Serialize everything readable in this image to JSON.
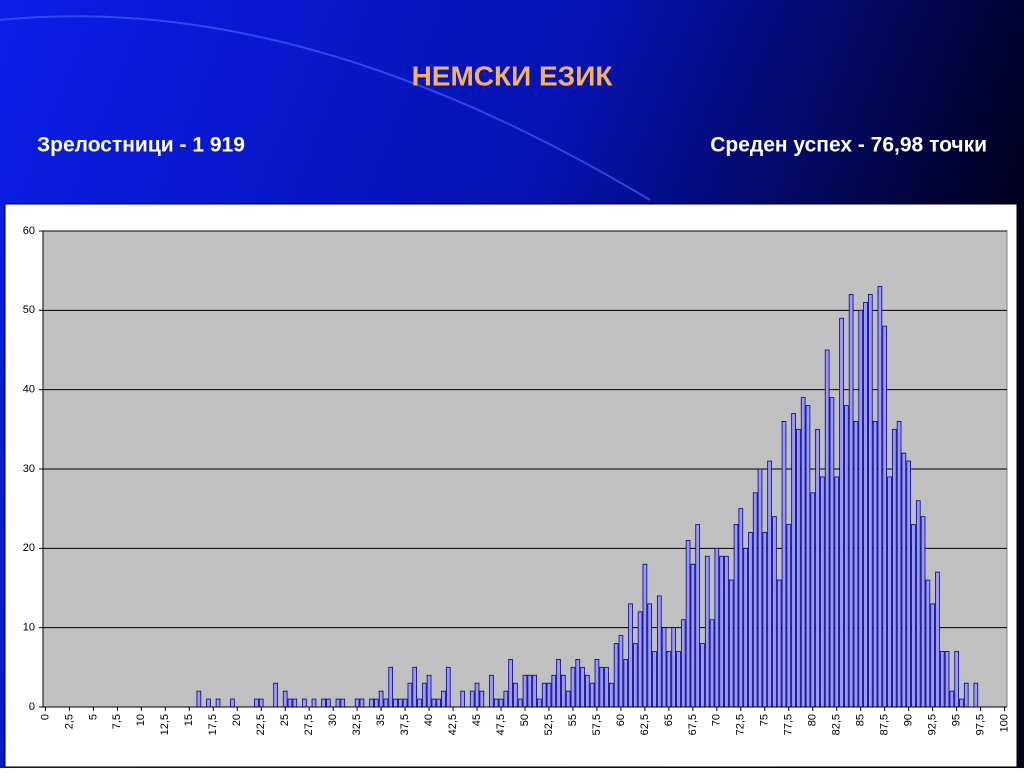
{
  "chart_data": {
    "type": "bar",
    "title": "НЕМСКИ ЕЗИК",
    "subtitles": [
      "Зрелостници - 1 919",
      "Среден успех - 76,98 точки"
    ],
    "categories": [
      "0",
      null,
      null,
      null,
      null,
      "2,5",
      null,
      null,
      null,
      null,
      "5",
      null,
      null,
      null,
      null,
      "7,5",
      null,
      null,
      null,
      null,
      "10",
      null,
      null,
      null,
      null,
      "12,5",
      null,
      null,
      null,
      null,
      "15",
      null,
      null,
      null,
      null,
      "17,5",
      null,
      null,
      null,
      null,
      "20",
      null,
      null,
      null,
      null,
      "22,5",
      null,
      null,
      null,
      null,
      "25",
      null,
      null,
      null,
      null,
      "27,5",
      null,
      null,
      null,
      null,
      "30",
      null,
      null,
      null,
      null,
      "32,5",
      null,
      null,
      null,
      null,
      "35",
      null,
      null,
      null,
      null,
      "37,5",
      null,
      null,
      null,
      null,
      "40",
      null,
      null,
      null,
      null,
      "42,5",
      null,
      null,
      null,
      null,
      "45",
      null,
      null,
      null,
      null,
      "47,5",
      null,
      null,
      null,
      null,
      "50",
      null,
      null,
      null,
      null,
      "52,5",
      null,
      null,
      null,
      null,
      "55",
      null,
      null,
      null,
      null,
      "57,5",
      null,
      null,
      null,
      null,
      "60",
      null,
      null,
      null,
      null,
      "62,5",
      null,
      null,
      null,
      null,
      "65",
      null,
      null,
      null,
      null,
      "67,5",
      null,
      null,
      null,
      null,
      "70",
      null,
      null,
      null,
      null,
      "72,5",
      null,
      null,
      null,
      null,
      "75",
      null,
      null,
      null,
      null,
      "77,5",
      null,
      null,
      null,
      null,
      "80",
      null,
      null,
      null,
      null,
      "82,5",
      null,
      null,
      null,
      null,
      "85",
      null,
      null,
      null,
      null,
      "87,5",
      null,
      null,
      null,
      null,
      "90",
      null,
      null,
      null,
      null,
      "92,5",
      null,
      null,
      null,
      null,
      "95",
      null,
      null,
      null,
      null,
      "97,5",
      null,
      null,
      null,
      null,
      "100"
    ],
    "values": [
      0,
      0,
      0,
      0,
      0,
      0,
      0,
      0,
      0,
      0,
      0,
      0,
      0,
      0,
      0,
      0,
      0,
      0,
      0,
      0,
      0,
      0,
      0,
      0,
      0,
      0,
      0,
      0,
      0,
      0,
      0,
      0,
      2,
      0,
      1,
      0,
      1,
      0,
      0,
      1,
      0,
      0,
      0,
      0,
      1,
      1,
      0,
      0,
      3,
      0,
      2,
      1,
      1,
      0,
      1,
      0,
      1,
      0,
      1,
      1,
      0,
      1,
      1,
      0,
      0,
      1,
      1,
      0,
      1,
      1,
      2,
      1,
      5,
      1,
      1,
      1,
      3,
      5,
      1,
      3,
      4,
      1,
      1,
      2,
      5,
      0,
      0,
      2,
      0,
      2,
      3,
      2,
      0,
      4,
      1,
      1,
      2,
      6,
      3,
      1,
      4,
      4,
      4,
      1,
      3,
      3,
      4,
      6,
      4,
      2,
      5,
      6,
      5,
      4,
      3,
      6,
      5,
      5,
      3,
      8,
      9,
      6,
      13,
      8,
      12,
      18,
      13,
      7,
      14,
      10,
      7,
      10,
      7,
      11,
      21,
      18,
      23,
      8,
      19,
      11,
      20,
      19,
      19,
      16,
      23,
      25,
      20,
      22,
      27,
      30,
      22,
      31,
      24,
      16,
      36,
      23,
      37,
      35,
      39,
      38,
      27,
      35,
      29,
      45,
      39,
      29,
      49,
      38,
      52,
      36,
      50,
      51,
      52,
      36,
      53,
      48,
      29,
      35,
      36,
      32,
      31,
      23,
      26,
      24,
      16,
      13,
      17,
      7,
      7,
      2,
      7,
      1,
      3,
      0,
      3,
      0,
      0,
      0,
      0,
      0,
      0
    ],
    "color": "#9999ff",
    "ylim": [
      0,
      60
    ],
    "yticks": [
      0,
      10,
      20,
      30,
      40,
      50,
      60
    ],
    "grid": true
  }
}
